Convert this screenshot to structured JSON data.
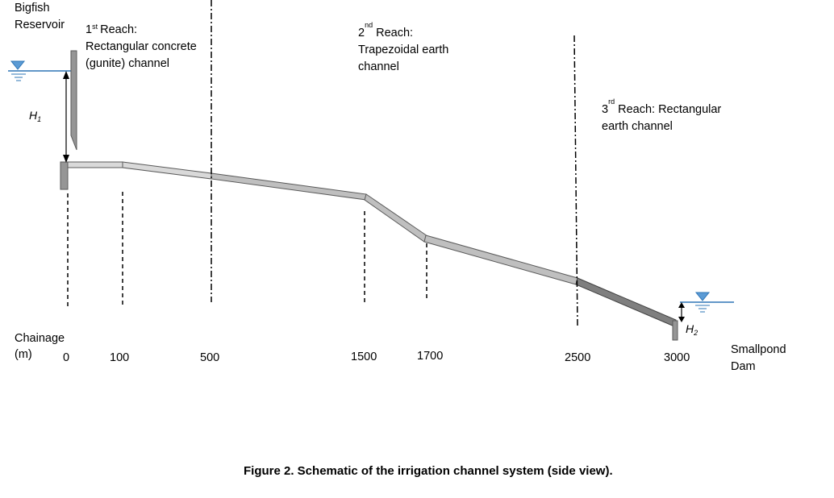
{
  "labels": {
    "reservoir": [
      "Bigfish",
      "Reservoir"
    ],
    "reach1": [
      "Reach:",
      "Rectangular concrete",
      "(gunite) channel"
    ],
    "reach1_num": "1",
    "reach1_sup": "st",
    "reach2": [
      "Reach:",
      "Trapezoidal earth",
      "channel"
    ],
    "reach2_num": "2",
    "reach2_sup": "nd",
    "reach3": [
      "Reach: Rectangular",
      "earth channel"
    ],
    "reach3_num": "3",
    "reach3_sup": "rd",
    "h1": "H",
    "h1_sub": "1",
    "h2": "H",
    "h2_sub": "2",
    "chainage": [
      "Chainage",
      "(m)"
    ],
    "dam": [
      "Smallpond",
      "Dam"
    ]
  },
  "chainages": [
    "0",
    "100",
    "500",
    "1500",
    "1700",
    "2500",
    "3000"
  ],
  "caption": "Figure 2. Schematic of the irrigation channel system (side view).",
  "colors": {
    "water": "#2e75b6",
    "water_marker": "#5b9bd5",
    "wall": "#969696",
    "channel_light": "#d9d9d9",
    "channel_mid": "#bfbfbf",
    "channel_dark": "#7f7f7f"
  }
}
